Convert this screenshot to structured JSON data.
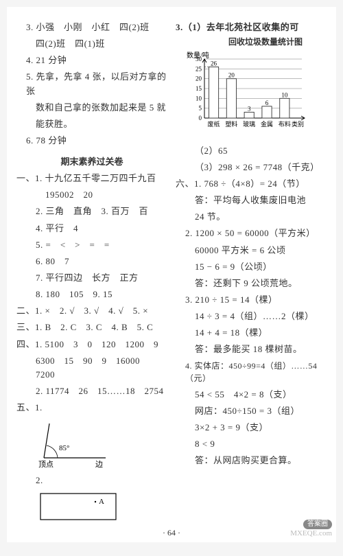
{
  "left": {
    "l3": "3. 小强　小刚　小红　四(2)班",
    "l3b": "四(2)班　四(1)班",
    "l4": "4. 21 分钟",
    "l5a": "5. 先拿，先拿 4 张，以后对方拿的张",
    "l5b": "数和自己拿的张数加起来是 5 就",
    "l5c": "能获胜。",
    "l6": "6. 78 分钟",
    "title": "期末素养过关卷",
    "s1_1a": "一、1. 十九亿五千零二万四千九百",
    "s1_1b": "195002　20",
    "s1_2": "2. 三角　直角　3. 百万　百",
    "s1_4": "4. 平行　4",
    "s1_5": "5. =　<　>　=　=",
    "s1_6": "6. 80　7",
    "s1_7": "7. 平行四边　长方　正方",
    "s1_8": "8. 180　105　9. 15",
    "s2": "二、1. ×　2. √　3. √　4. √　5. ×",
    "s3": "三、1. B　2. C　3. C　4. B　5. C",
    "s4_1a": "四、1. 5100　3　0　120　1200　9",
    "s4_1b": "6300　15　90　9　16000　7200",
    "s4_2": "2. 11774　26　15……18　2754",
    "s5": "五、1.",
    "angle_label": "85°",
    "angle_v": "顶点",
    "angle_e": "边",
    "s5_2": "2.",
    "pointA": "A"
  },
  "right": {
    "r3_1a": "3.（1）去年北苑社区收集的可",
    "r3_1b": "回收垃圾数量统计图",
    "chart": {
      "ylabel": "数量/吨",
      "ymax": 30,
      "ystep": 5,
      "categories": [
        "废纸",
        "塑料",
        "玻璃",
        "金属",
        "布料",
        "类别"
      ],
      "values": [
        26,
        20,
        3,
        6,
        10
      ],
      "labels": [
        "26",
        "20",
        "3",
        "6",
        "10"
      ],
      "bar_fill": "#ffffff",
      "bar_stroke": "#333333",
      "grid_color": "#555555",
      "bg": "#ffffff",
      "width": 180,
      "height": 120
    },
    "r3_2": "（2）65",
    "r3_3": "（3）298 × 26 = 7748（千克）",
    "r6_1a": "六、1. 768 ÷（4×8）= 24（节）",
    "r6_1b": "答：平均每人收集废旧电池",
    "r6_1c": "24 节。",
    "r6_2a": "2. 1200 × 50 = 60000（平方米）",
    "r6_2b": "60000 平方米 = 6 公顷",
    "r6_2c": "15 − 6 = 9（公顷）",
    "r6_2d": "答：还剩下 9 公顷荒地。",
    "r6_3a": "3. 210 ÷ 15 = 14（棵）",
    "r6_3b": "14 ÷ 3 = 4（组）……2（棵）",
    "r6_3c": "14 + 4 = 18（棵）",
    "r6_3d": "答：最多能买 18 棵树苗。",
    "r6_4a": "4. 实体店：450÷99=4（组）……54（元）",
    "r6_4b": "54 < 55　4×2 = 8（支）",
    "r6_4c": "网店：450÷150 = 3（组）",
    "r6_4d": "3×2 + 3 = 9（支）",
    "r6_4e": "8 < 9",
    "r6_4f": "答：从网店购买更合算。"
  },
  "pagenum": "· 64 ·",
  "watermark": {
    "badge": "答案圈",
    "url": "MXEQE.com"
  }
}
